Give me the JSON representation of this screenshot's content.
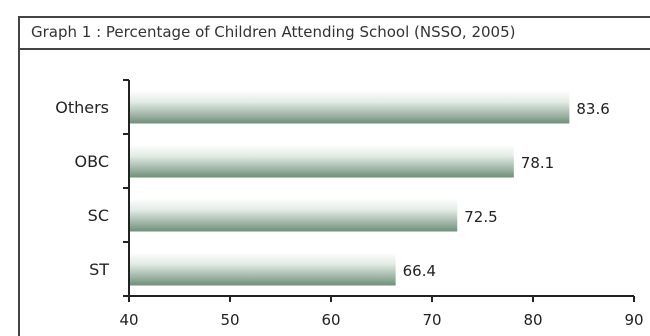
{
  "title": "Graph 1 : Percentage of Children Attending School (NSSO, 2005)",
  "chart_data": {
    "type": "bar",
    "orientation": "horizontal",
    "categories": [
      "Others",
      "OBC",
      "SC",
      "ST"
    ],
    "values": [
      83.6,
      78.1,
      72.5,
      66.4
    ],
    "xlim": [
      40,
      90
    ],
    "xticks": [
      40,
      50,
      60,
      70,
      80,
      90
    ],
    "grid": false,
    "bar_color": "#6f8f7a"
  }
}
